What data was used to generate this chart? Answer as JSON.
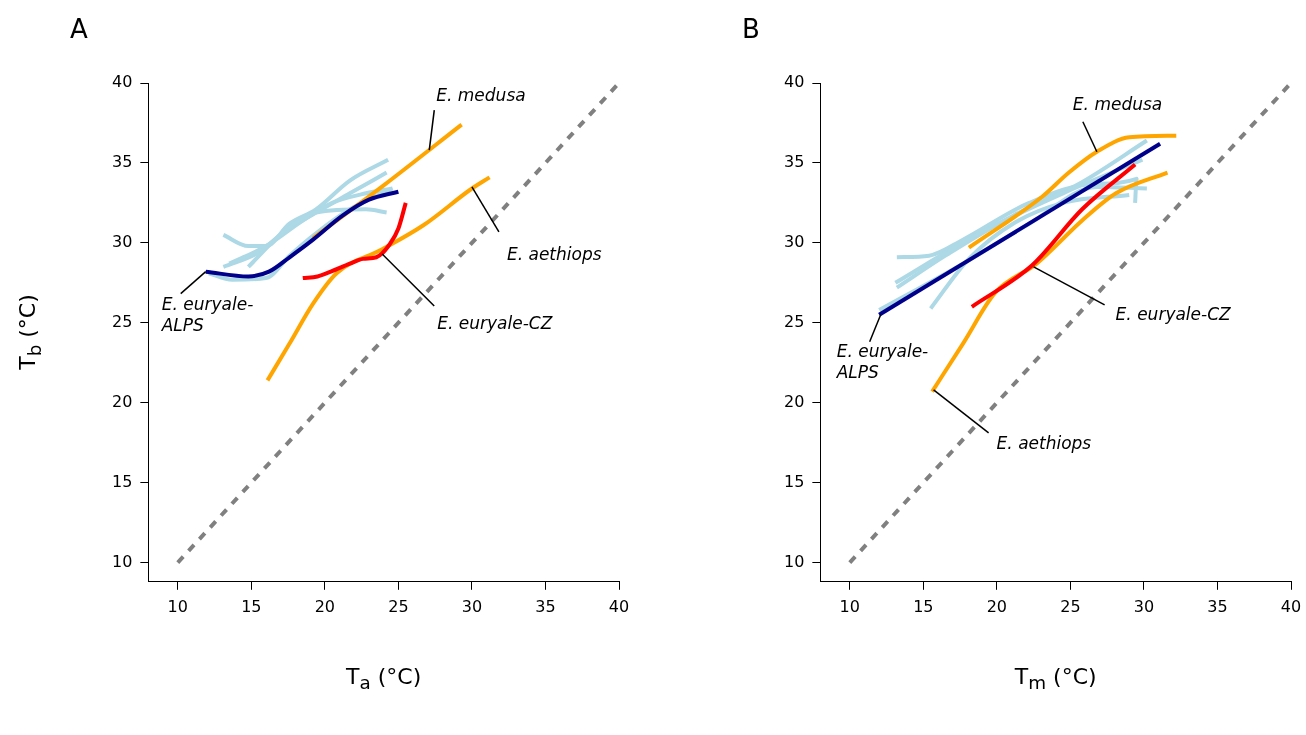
{
  "chart_data": [
    {
      "type": "line",
      "title": "A",
      "xlabel": "T$_{a}$ (°C)",
      "ylabel": "T$_{b}$ (°C)",
      "xlim": [
        8,
        40
      ],
      "ylim": [
        8.8,
        40
      ],
      "xticks": [
        10,
        15,
        20,
        25,
        30,
        35,
        40
      ],
      "yticks": [
        10,
        15,
        20,
        25,
        30,
        35,
        40
      ],
      "grid": false,
      "series": [
        {
          "color": "#808080",
          "line_style": "dashed",
          "x": [
            10,
            40
          ],
          "values": [
            10,
            40
          ]
        },
        {
          "color": "#add8e6",
          "x": [
            13.1,
            14.8,
            16.0,
            17.6,
            19.4,
            21.7,
            24.3
          ],
          "values": [
            30.5,
            29.8,
            29.8,
            31.2,
            32.1,
            33.9,
            35.2
          ]
        },
        {
          "color": "#add8e6",
          "x": [
            13.1,
            15.5,
            17.1,
            19.4,
            21.7,
            24.2
          ],
          "values": [
            28.5,
            29.4,
            30.6,
            31.9,
            33.1,
            34.4
          ]
        },
        {
          "color": "#add8e6",
          "x": [
            12.1,
            13.7,
            16.0,
            17.6,
            19.4,
            21.7,
            24.6
          ],
          "values": [
            28.1,
            27.7,
            27.8,
            29.2,
            30.6,
            32.1,
            33.4
          ]
        },
        {
          "color": "#add8e6",
          "x": [
            13.5,
            16.0,
            18.5,
            20.5,
            22.8,
            24.6
          ],
          "values": [
            28.7,
            29.8,
            31.4,
            32.5,
            33.1,
            33.4
          ]
        },
        {
          "color": "#add8e6",
          "x": [
            14.8,
            17.1,
            19.4,
            22.8,
            24.2
          ],
          "values": [
            28.5,
            30.6,
            31.9,
            32.1,
            31.9
          ]
        },
        {
          "color": "#ffa500",
          "x": [
            19.2,
            24.0,
            29.3
          ],
          "values": [
            30.3,
            33.6,
            37.4
          ]
        },
        {
          "color": "#ffa500",
          "x": [
            16.1,
            17.6,
            19.2,
            20.8,
            23.9,
            26.7,
            30.0,
            31.2
          ],
          "values": [
            21.4,
            23.7,
            26.2,
            28.1,
            29.6,
            31.1,
            33.4,
            34.1
          ]
        },
        {
          "color": "#00008b",
          "x": [
            11.9,
            14.8,
            16.2,
            17.6,
            19.2,
            21.2,
            23.0,
            25.0
          ],
          "values": [
            28.2,
            27.9,
            28.2,
            29.1,
            30.2,
            31.7,
            32.7,
            33.2
          ]
        },
        {
          "color": "#ff0000",
          "x": [
            18.5,
            19.5,
            20.4,
            21.7,
            22.6,
            23.5,
            24.4,
            25.0,
            25.5
          ],
          "values": [
            27.8,
            27.9,
            28.2,
            28.7,
            29.0,
            29.1,
            29.9,
            30.9,
            32.5
          ]
        }
      ],
      "annotations": [
        {
          "text": "E. medusa",
          "x": 27.1,
          "y": 35.8
        },
        {
          "text": "E. aethiops",
          "x": 30.0,
          "y": 33.5
        },
        {
          "text": "E. euryale-CZ",
          "x": 23.9,
          "y": 29.3
        },
        {
          "text": "E. euryale-ALPS",
          "x": 11.9,
          "y": 28.2
        }
      ]
    },
    {
      "type": "line",
      "title": "B",
      "xlabel": "T$_{m}$ (°C)",
      "xlim": [
        8,
        40
      ],
      "ylim": [
        8.8,
        40
      ],
      "xticks": [
        10,
        15,
        20,
        25,
        30,
        35,
        40
      ],
      "yticks": [
        10,
        15,
        20,
        25,
        30,
        35,
        40
      ],
      "grid": false,
      "series": [
        {
          "color": "#808080",
          "line_style": "dashed",
          "x": [
            10,
            40
          ],
          "values": [
            10,
            40
          ]
        },
        {
          "color": "#add8e6",
          "x": [
            13.2,
            15.4,
            17.7,
            22.2,
            26.8,
            29.5,
            29.4
          ],
          "values": [
            29.1,
            29.2,
            30.2,
            32.5,
            33.7,
            34.0,
            32.5
          ]
        },
        {
          "color": "#add8e6",
          "x": [
            13.2,
            16.5,
            21.1,
            25.6,
            30.2
          ],
          "values": [
            27.2,
            29.2,
            31.7,
            33.7,
            36.4
          ]
        },
        {
          "color": "#add8e6",
          "x": [
            12.0,
            17.7,
            22.2,
            26.8,
            30.2
          ],
          "values": [
            25.8,
            28.7,
            31.2,
            33.5,
            33.4
          ]
        },
        {
          "color": "#add8e6",
          "x": [
            15.5,
            18.1,
            21.1,
            24.5,
            29.0
          ],
          "values": [
            25.9,
            29.0,
            31.2,
            32.5,
            33.0
          ]
        },
        {
          "color": "#add8e6",
          "x": [
            13.1,
            18.8,
            24.5,
            29.9
          ],
          "values": [
            27.5,
            30.6,
            33.1,
            35.2
          ]
        },
        {
          "color": "#ffa500",
          "x": [
            18.1,
            23.1,
            24.9,
            26.8,
            29.0,
            32.2
          ],
          "values": [
            29.7,
            32.9,
            34.4,
            35.7,
            36.6,
            36.7
          ]
        },
        {
          "color": "#ffa500",
          "x": [
            15.6,
            17.7,
            19.9,
            22.7,
            25.8,
            28.1,
            31.6
          ],
          "values": [
            20.7,
            23.7,
            26.9,
            28.7,
            31.4,
            33.1,
            34.4
          ]
        },
        {
          "color": "#00008b",
          "x": [
            12.0,
            31.1
          ],
          "values": [
            25.5,
            36.2
          ]
        },
        {
          "color": "#ff0000",
          "x": [
            18.3,
            22.4,
            25.8,
            29.4
          ],
          "values": [
            26.0,
            28.6,
            32.1,
            34.9
          ]
        }
      ],
      "annotations": [
        {
          "text": "E. medusa",
          "x": 26.8,
          "y": 35.7
        },
        {
          "text": "E. euryale-CZ",
          "x": 22.5,
          "y": 28.5
        },
        {
          "text": "E. euryale-ALPS",
          "x": 12.1,
          "y": 25.5
        },
        {
          "text": "E. aethiops",
          "x": 15.7,
          "y": 20.8
        }
      ]
    }
  ]
}
